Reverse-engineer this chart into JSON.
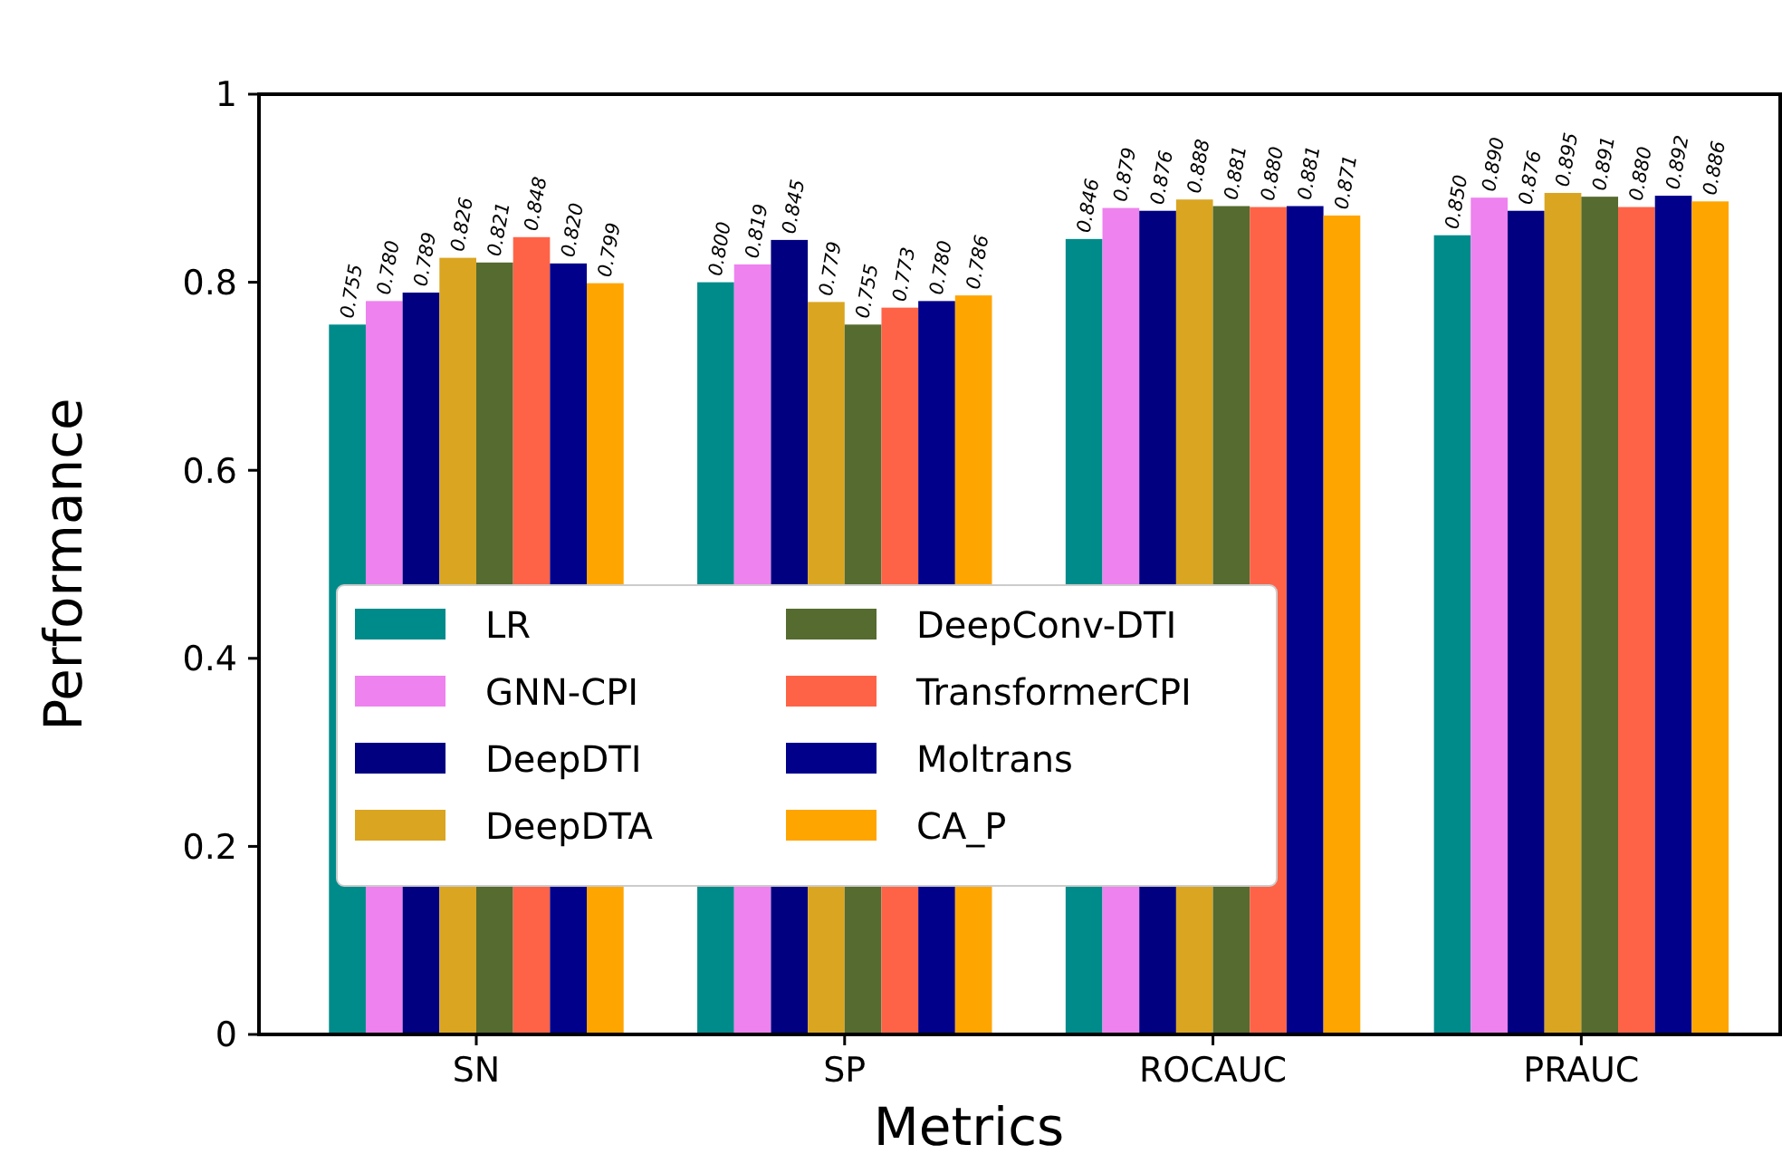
{
  "chart_data": {
    "type": "bar",
    "xlabel": "Metrics",
    "ylabel": "Performance",
    "categories": [
      "SN",
      "SP",
      "ROCAUC",
      "PRAUC"
    ],
    "series": [
      {
        "name": "LR",
        "color": "#008b8b",
        "values": [
          0.755,
          0.8,
          0.846,
          0.85
        ],
        "value_labels": [
          "0.755",
          "0.800",
          "0.846",
          "0.850"
        ]
      },
      {
        "name": "GNN-CPI",
        "color": "#ee82ee",
        "values": [
          0.78,
          0.819,
          0.879,
          0.89
        ],
        "value_labels": [
          "0.780",
          "0.819",
          "0.879",
          "0.890"
        ]
      },
      {
        "name": "DeepDTI",
        "color": "#000080",
        "values": [
          0.789,
          0.845,
          0.876,
          0.876
        ],
        "value_labels": [
          "0.789",
          "0.845",
          "0.876",
          "0.876"
        ]
      },
      {
        "name": "DeepDTA",
        "color": "#daa520",
        "values": [
          0.826,
          0.779,
          0.888,
          0.895
        ],
        "value_labels": [
          "0.826",
          "0.779",
          "0.888",
          "0.895"
        ]
      },
      {
        "name": "DeepConv-DTI",
        "color": "#556b2f",
        "values": [
          0.821,
          0.755,
          0.881,
          0.891
        ],
        "value_labels": [
          "0.821",
          "0.755",
          "0.881",
          "0.891"
        ]
      },
      {
        "name": "TransformerCPI",
        "color": "#ff6347",
        "values": [
          0.848,
          0.773,
          0.88,
          0.88
        ],
        "value_labels": [
          "0.848",
          "0.773",
          "0.880",
          "0.880"
        ]
      },
      {
        "name": "Moltrans",
        "color": "#00008b",
        "values": [
          0.82,
          0.78,
          0.881,
          0.892
        ],
        "value_labels": [
          "0.820",
          "0.780",
          "0.881",
          "0.892"
        ]
      },
      {
        "name": "CA_P",
        "color": "#ffa500",
        "values": [
          0.799,
          0.786,
          0.871,
          0.886
        ],
        "value_labels": [
          "0.799",
          "0.786",
          "0.871",
          "0.886"
        ]
      }
    ],
    "ylim": [
      0,
      1
    ],
    "yticks": [
      0,
      {
        "value": 0.2,
        "label": "0.2"
      },
      {
        "value": 0.4,
        "label": "0.4"
      },
      {
        "value": 0.6,
        "label": "0.6"
      },
      {
        "value": 0.8,
        "label": "0.8"
      },
      1
    ],
    "legend": "center left",
    "grid": false
  }
}
